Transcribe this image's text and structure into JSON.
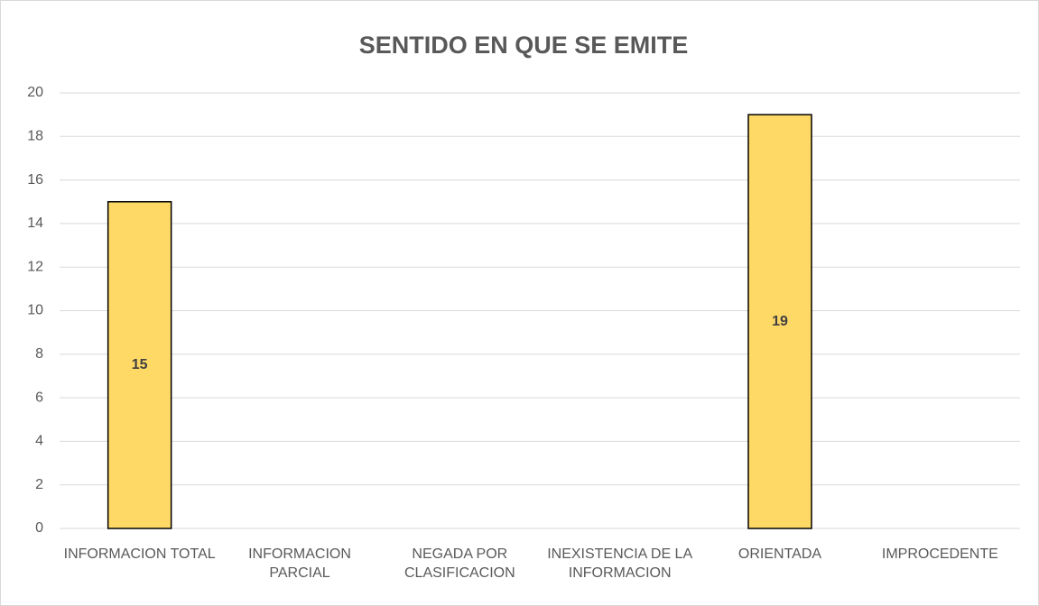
{
  "chart_data": {
    "type": "bar",
    "title": "SENTIDO EN QUE SE EMITE",
    "categories": [
      "INFORMACION TOTAL",
      "INFORMACION PARCIAL",
      "NEGADA POR CLASIFICACION",
      "INEXISTENCIA DE LA INFORMACION",
      "ORIENTADA",
      "IMPROCEDENTE"
    ],
    "values": [
      15,
      null,
      null,
      null,
      19,
      null
    ],
    "color": "#ffd966",
    "ylim": [
      0,
      20
    ],
    "yticks": [
      0,
      2,
      4,
      6,
      8,
      10,
      12,
      14,
      16,
      18,
      20
    ],
    "grid": true
  }
}
